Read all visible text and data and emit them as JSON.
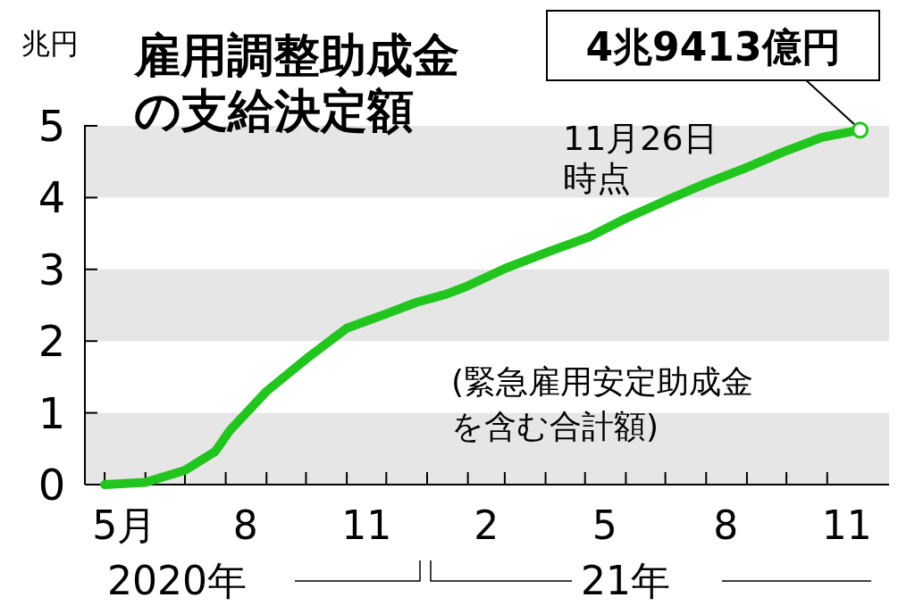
{
  "chart_data": {
    "type": "line",
    "title": "雇用調整助成金の支給決定額",
    "ylabel": "兆円",
    "x": [
      "2020-05-01",
      "2020-06-01",
      "2020-07-01",
      "2020-07-24",
      "2020-08-04",
      "2020-09-01",
      "2020-10-01",
      "2020-11-01",
      "2020-12-01",
      "2020-12-24",
      "2021-01-15",
      "2021-02-01",
      "2021-03-01",
      "2021-04-04",
      "2021-05-04",
      "2021-06-01",
      "2021-07-04",
      "2021-08-01",
      "2021-09-01",
      "2021-09-28",
      "2021-10-28",
      "2021-11-26"
    ],
    "series": [
      {
        "color": "#22c51e",
        "values": [
          0,
          0.03,
          0.2,
          0.46,
          0.75,
          1.3,
          1.75,
          2.18,
          2.38,
          2.54,
          2.65,
          2.77,
          3.01,
          3.25,
          3.45,
          3.71,
          3.98,
          4.2,
          4.42,
          4.63,
          4.84,
          4.9413
        ]
      }
    ],
    "xlim": [
      "2020-04-16",
      "2021-12-18"
    ],
    "xticks": [
      {
        "value": "2020-05-16",
        "label": "5月"
      },
      {
        "value": "2020-08-16",
        "label": "8"
      },
      {
        "value": "2020-11-16",
        "label": "11"
      },
      {
        "value": "2021-02-15",
        "label": "2"
      },
      {
        "value": "2021-05-16",
        "label": "5"
      },
      {
        "value": "2021-08-16",
        "label": "8"
      },
      {
        "value": "2021-11-16",
        "label": "11"
      },
      {
        "value": "2020-05-01",
        "label": null
      },
      {
        "value": "2020-06-01",
        "label": null
      },
      {
        "value": "2020-07-01",
        "label": null
      },
      {
        "value": "2020-08-01",
        "label": null
      },
      {
        "value": "2020-09-01",
        "label": null
      },
      {
        "value": "2020-10-01",
        "label": null
      },
      {
        "value": "2020-11-01",
        "label": null
      },
      {
        "value": "2020-12-01",
        "label": null
      },
      {
        "value": "2021-01-01",
        "label": null
      },
      {
        "value": "2021-02-01",
        "label": null
      },
      {
        "value": "2021-03-01",
        "label": null
      },
      {
        "value": "2021-04-01",
        "label": null
      },
      {
        "value": "2021-05-01",
        "label": null
      },
      {
        "value": "2021-06-01",
        "label": null
      },
      {
        "value": "2021-07-01",
        "label": null
      },
      {
        "value": "2021-08-01",
        "label": null
      },
      {
        "value": "2021-09-01",
        "label": null
      },
      {
        "value": "2021-10-01",
        "label": null
      },
      {
        "value": "2021-11-01",
        "label": null
      }
    ],
    "ylim": [
      0,
      5
    ],
    "yticks": [
      0,
      1,
      2,
      3,
      4,
      5
    ],
    "bands": [
      {
        "axis": "y",
        "from": 0,
        "to": 1,
        "color": "#e6e6e6"
      },
      {
        "axis": "y",
        "from": 2,
        "to": 3,
        "color": "#e6e6e6"
      },
      {
        "axis": "y",
        "from": 4,
        "to": 5,
        "color": "#e6e6e6"
      }
    ],
    "annotations": [
      {
        "text": "4兆9413億円",
        "x": "2021-11-26",
        "y": 4.9413
      },
      "11月26日時点",
      "(緊急雇用安定助成金を含む合計額)",
      "2020年",
      "21年"
    ],
    "grid": false
  }
}
